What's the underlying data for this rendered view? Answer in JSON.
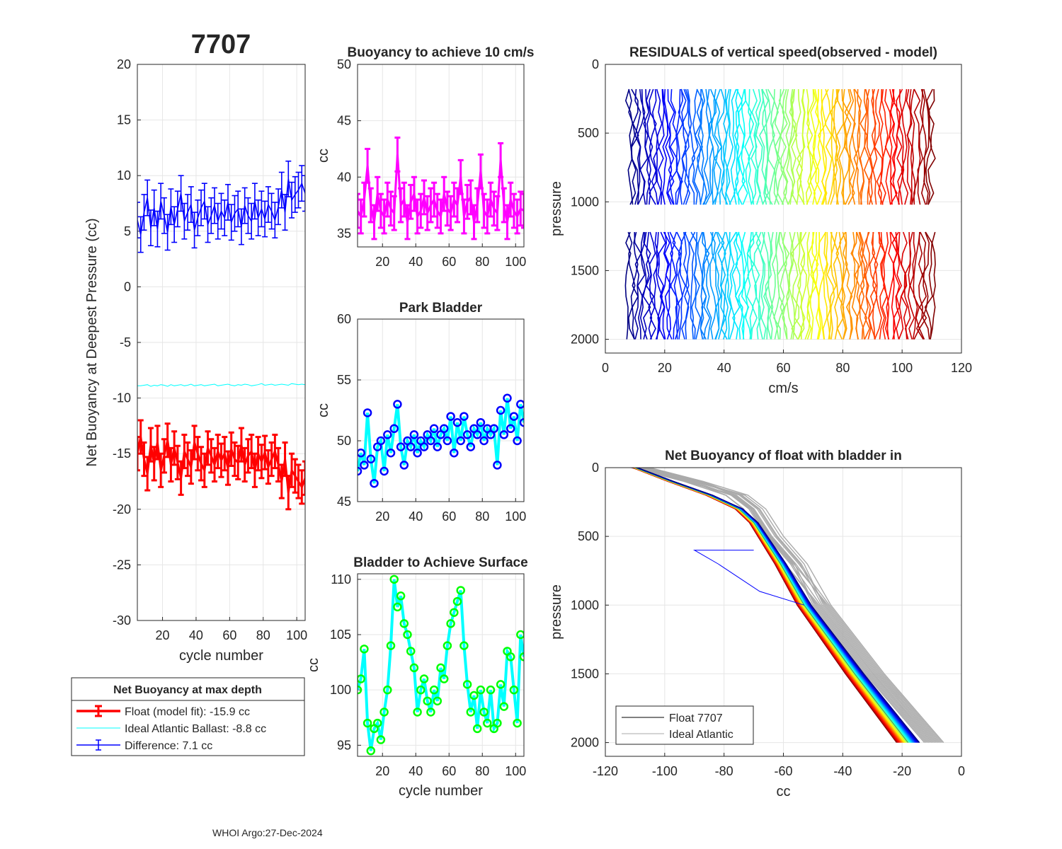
{
  "figure": {
    "title": "7707",
    "footer": "WHOI Argo:27-Dec-2024"
  },
  "colors": {
    "float": "#ff0000",
    "ideal": "#00ffff",
    "difference": "#0000ff",
    "buoyancy10": "#ff00ff",
    "bladder_marker": "#0000ff",
    "bladder_line": "#00ffff",
    "surface_marker": "#00ff00",
    "surface_line": "#00ffff",
    "gray": "#aaaaaa",
    "black": "#000000"
  },
  "chart_data": [
    {
      "id": "net_buoyancy",
      "type": "line",
      "title": "",
      "xlabel": "cycle number",
      "ylabel": "Net Buoyancy at Deepest Pressure (cc)",
      "xlim": [
        5,
        105
      ],
      "ylim": [
        -30,
        20
      ],
      "xticks": [
        20,
        40,
        60,
        80,
        100
      ],
      "yticks": [
        20,
        15,
        10,
        5,
        0,
        -5,
        -10,
        -15,
        -20,
        -25,
        -30
      ],
      "grid": true,
      "legend": {
        "title": "Net Buoyancy at max depth",
        "entries": [
          "Float (model fit): -15.9 cc",
          "Ideal Atlantic Ballast:  -8.8 cc",
          "Difference:   7.1 cc"
        ]
      },
      "series": [
        {
          "name": "Float (model fit)",
          "errorbar": 1.5,
          "x": [
            5,
            7,
            9,
            11,
            13,
            15,
            17,
            19,
            21,
            23,
            25,
            27,
            29,
            31,
            33,
            35,
            37,
            39,
            41,
            43,
            45,
            47,
            49,
            51,
            53,
            55,
            57,
            59,
            61,
            63,
            65,
            67,
            69,
            71,
            73,
            75,
            77,
            79,
            81,
            83,
            85,
            87,
            89,
            91,
            93,
            95,
            97,
            99,
            101,
            103,
            105
          ],
          "values": [
            -15.0,
            -13.5,
            -15.5,
            -16.8,
            -14.2,
            -15.9,
            -14.0,
            -16.5,
            -15.2,
            -13.8,
            -16.0,
            -14.5,
            -15.8,
            -17.2,
            -14.8,
            -15.5,
            -16.2,
            -14.0,
            -15.0,
            -15.9,
            -16.5,
            -14.5,
            -15.2,
            -16.0,
            -14.8,
            -15.6,
            -15.0,
            -16.3,
            -14.6,
            -15.5,
            -15.8,
            -14.2,
            -16.0,
            -15.2,
            -14.8,
            -16.5,
            -15.0,
            -15.7,
            -14.9,
            -16.2,
            -15.5,
            -14.8,
            -16.0,
            -17.5,
            -15.5,
            -18.5,
            -16.5,
            -17.0,
            -17.5,
            -18.0,
            -17.2
          ]
        },
        {
          "name": "Ideal Atlantic Ballast",
          "x": [
            5,
            7,
            9,
            11,
            13,
            15,
            17,
            19,
            21,
            23,
            25,
            27,
            29,
            31,
            33,
            35,
            37,
            39,
            41,
            43,
            45,
            47,
            49,
            51,
            53,
            55,
            57,
            59,
            61,
            63,
            65,
            67,
            69,
            71,
            73,
            75,
            77,
            79,
            81,
            83,
            85,
            87,
            89,
            91,
            93,
            95,
            97,
            99,
            101,
            103,
            105
          ],
          "values": [
            -8.9,
            -8.9,
            -8.85,
            -8.8,
            -8.95,
            -8.85,
            -8.9,
            -8.8,
            -8.85,
            -8.95,
            -8.8,
            -8.9,
            -8.85,
            -8.8,
            -8.9,
            -8.85,
            -8.75,
            -8.9,
            -8.85,
            -8.8,
            -8.9,
            -8.85,
            -8.8,
            -8.75,
            -8.9,
            -8.85,
            -8.8,
            -8.75,
            -8.85,
            -8.9,
            -8.8,
            -8.85,
            -8.75,
            -8.8,
            -8.9,
            -8.85,
            -8.8,
            -8.7,
            -8.85,
            -8.8,
            -8.75,
            -8.85,
            -8.8,
            -8.75,
            -8.8,
            -8.85,
            -8.7,
            -8.75,
            -8.8,
            -8.75,
            -8.8
          ]
        },
        {
          "name": "Difference",
          "errorbar": 1.6,
          "x": [
            5,
            7,
            9,
            11,
            13,
            15,
            17,
            19,
            21,
            23,
            25,
            27,
            29,
            31,
            33,
            35,
            37,
            39,
            41,
            43,
            45,
            47,
            49,
            51,
            53,
            55,
            57,
            59,
            61,
            63,
            65,
            67,
            69,
            71,
            73,
            75,
            77,
            79,
            81,
            83,
            85,
            87,
            89,
            91,
            93,
            95,
            97,
            99,
            101,
            103,
            105
          ],
          "values": [
            6.0,
            4.7,
            6.7,
            8.0,
            5.3,
            7.1,
            5.2,
            7.7,
            6.4,
            4.9,
            7.2,
            5.6,
            7.0,
            8.4,
            5.9,
            6.7,
            7.4,
            5.1,
            6.2,
            7.1,
            7.7,
            5.6,
            6.4,
            7.3,
            5.9,
            6.8,
            6.2,
            7.6,
            5.8,
            6.6,
            7.0,
            5.4,
            7.3,
            6.4,
            5.9,
            7.7,
            6.2,
            7.0,
            6.1,
            7.4,
            6.8,
            6.0,
            7.2,
            8.7,
            6.7,
            9.7,
            7.8,
            8.3,
            8.7,
            9.3,
            8.4
          ]
        }
      ]
    },
    {
      "id": "buoyancy_10cms",
      "type": "line",
      "title": "Buoyancy to achieve 10 cm/s",
      "xlabel": "",
      "ylabel": "cc",
      "xlim": [
        5,
        105
      ],
      "ylim": [
        33.8,
        50
      ],
      "xticks": [
        20,
        40,
        60,
        80,
        100
      ],
      "yticks": [
        50,
        45,
        40,
        35
      ],
      "grid": true,
      "series": [
        {
          "name": "buoyancy",
          "errorbar": 1.5,
          "x": [
            5,
            7,
            9,
            11,
            13,
            15,
            17,
            19,
            21,
            23,
            25,
            27,
            29,
            31,
            33,
            35,
            37,
            39,
            41,
            43,
            45,
            47,
            49,
            51,
            53,
            55,
            57,
            59,
            61,
            63,
            65,
            67,
            69,
            71,
            73,
            75,
            77,
            79,
            81,
            83,
            85,
            87,
            89,
            91,
            93,
            95,
            97,
            99,
            101,
            103,
            105
          ],
          "values": [
            37.0,
            36.5,
            38.0,
            41.0,
            37.5,
            36.0,
            38.5,
            37.0,
            36.5,
            38.0,
            37.2,
            36.8,
            42.0,
            37.5,
            38.0,
            36.0,
            37.8,
            38.5,
            36.5,
            37.0,
            38.2,
            36.8,
            37.5,
            38.0,
            37.0,
            36.5,
            38.5,
            37.2,
            36.8,
            38.0,
            37.5,
            40.0,
            36.5,
            37.8,
            38.2,
            36.0,
            37.5,
            40.5,
            37.0,
            36.5,
            38.0,
            37.2,
            36.8,
            41.5,
            37.5,
            36.0,
            38.0,
            37.0,
            36.5,
            37.2,
            37.0
          ]
        }
      ]
    },
    {
      "id": "park_bladder",
      "type": "line",
      "title": "Park Bladder",
      "xlabel": "",
      "ylabel": "cc",
      "xlim": [
        5,
        105
      ],
      "ylim": [
        45,
        60
      ],
      "xticks": [
        20,
        40,
        60,
        80,
        100
      ],
      "yticks": [
        60,
        55,
        50,
        45
      ],
      "grid": true,
      "series": [
        {
          "name": "bladder",
          "x": [
            5,
            7,
            9,
            11,
            13,
            15,
            17,
            19,
            21,
            23,
            25,
            27,
            29,
            31,
            33,
            35,
            37,
            39,
            41,
            43,
            45,
            47,
            49,
            51,
            53,
            55,
            57,
            59,
            61,
            63,
            65,
            67,
            69,
            71,
            73,
            75,
            77,
            79,
            81,
            83,
            85,
            87,
            89,
            91,
            93,
            95,
            97,
            99,
            101,
            103,
            105
          ],
          "values": [
            47.5,
            49.0,
            48.0,
            52.3,
            48.5,
            46.5,
            49.5,
            50.0,
            47.5,
            50.5,
            49.0,
            51.0,
            53.0,
            49.5,
            48.0,
            50.0,
            49.5,
            50.5,
            49.0,
            50.0,
            49.5,
            50.5,
            50.0,
            51.0,
            49.5,
            50.5,
            51.0,
            50.0,
            52.0,
            49.0,
            51.5,
            50.0,
            52.0,
            50.5,
            49.5,
            51.0,
            50.5,
            51.5,
            50.0,
            51.0,
            50.5,
            51.0,
            48.0,
            52.5,
            50.5,
            53.5,
            51.0,
            52.0,
            50.0,
            53.0,
            51.5
          ]
        }
      ]
    },
    {
      "id": "bladder_surface",
      "type": "line",
      "title": "Bladder to Achieve Surface",
      "xlabel": "cycle number",
      "ylabel": "cc",
      "xlim": [
        5,
        105
      ],
      "ylim": [
        94,
        110.5
      ],
      "xticks": [
        20,
        40,
        60,
        80,
        100
      ],
      "yticks": [
        110,
        105,
        100,
        95
      ],
      "grid": true,
      "series": [
        {
          "name": "surface",
          "x": [
            5,
            7,
            9,
            11,
            13,
            15,
            17,
            19,
            21,
            23,
            25,
            27,
            29,
            31,
            33,
            35,
            37,
            39,
            41,
            43,
            45,
            47,
            49,
            51,
            53,
            55,
            57,
            59,
            61,
            63,
            65,
            67,
            69,
            71,
            73,
            75,
            77,
            79,
            81,
            83,
            85,
            87,
            89,
            91,
            93,
            95,
            97,
            99,
            101,
            103,
            105
          ],
          "values": [
            100.0,
            101.0,
            103.7,
            97.0,
            94.5,
            96.5,
            97.0,
            95.5,
            98.0,
            100.0,
            104.0,
            110.0,
            107.5,
            108.5,
            106.0,
            105.0,
            103.5,
            102.0,
            98.0,
            100.0,
            101.0,
            99.0,
            98.0,
            100.0,
            99.0,
            102.0,
            101.0,
            104.0,
            106.0,
            107.0,
            108.0,
            109.0,
            104.0,
            100.5,
            98.0,
            99.5,
            96.5,
            100.0,
            98.0,
            97.0,
            100.0,
            96.5,
            97.0,
            100.5,
            98.5,
            103.5,
            103.0,
            100.0,
            97.0,
            105.0,
            103.0
          ]
        }
      ]
    },
    {
      "id": "residuals",
      "type": "line",
      "title": "RESIDUALS of vertical speed(observed - model)",
      "xlabel": "cm/s",
      "ylabel": "pressure",
      "xlim": [
        0,
        120
      ],
      "ylim": [
        2100,
        0
      ],
      "xticks": [
        0,
        20,
        40,
        60,
        80,
        100,
        120
      ],
      "yticks": [
        0,
        500,
        1000,
        1500,
        2000
      ],
      "grid": true,
      "profile_count": 103,
      "offset_per_cycle_cms": 1,
      "upper_pressure_range": [
        180,
        1020
      ],
      "lower_pressure_range": [
        1220,
        2000
      ],
      "colormap": "jet"
    },
    {
      "id": "net_buoyancy_bladder_in",
      "type": "line",
      "title": "Net Buoyancy of float with bladder in",
      "xlabel": "cc",
      "ylabel": "pressure",
      "xlim": [
        -120,
        0
      ],
      "ylim": [
        2100,
        0
      ],
      "xticks": [
        -120,
        -100,
        -80,
        -60,
        -40,
        -20,
        0
      ],
      "yticks": [
        0,
        500,
        1000,
        1500,
        2000
      ],
      "grid": true,
      "legend": {
        "position": "bottom-left",
        "entries": [
          "Float 7707",
          "Ideal Atlantic"
        ]
      },
      "float_profile": {
        "pressure": [
          0,
          100,
          200,
          300,
          400,
          500,
          700,
          1000,
          1500,
          2000
        ],
        "values": [
          -110,
          -98,
          -85,
          -75,
          -70,
          -67,
          -61,
          -53,
          -36,
          -18
        ]
      },
      "ideal_profile": {
        "pressure": [
          0,
          100,
          200,
          300,
          400,
          500,
          700,
          1000,
          1500,
          2000
        ],
        "values": [
          -108,
          -90,
          -76,
          -70,
          -67,
          -64,
          -56,
          -47,
          -29,
          -9
        ]
      },
      "anomaly_profile": {
        "pressure": [
          600,
          600,
          700,
          800,
          900,
          1000
        ],
        "values": [
          -70,
          -90,
          -82,
          -75,
          -68,
          -53
        ]
      }
    }
  ]
}
